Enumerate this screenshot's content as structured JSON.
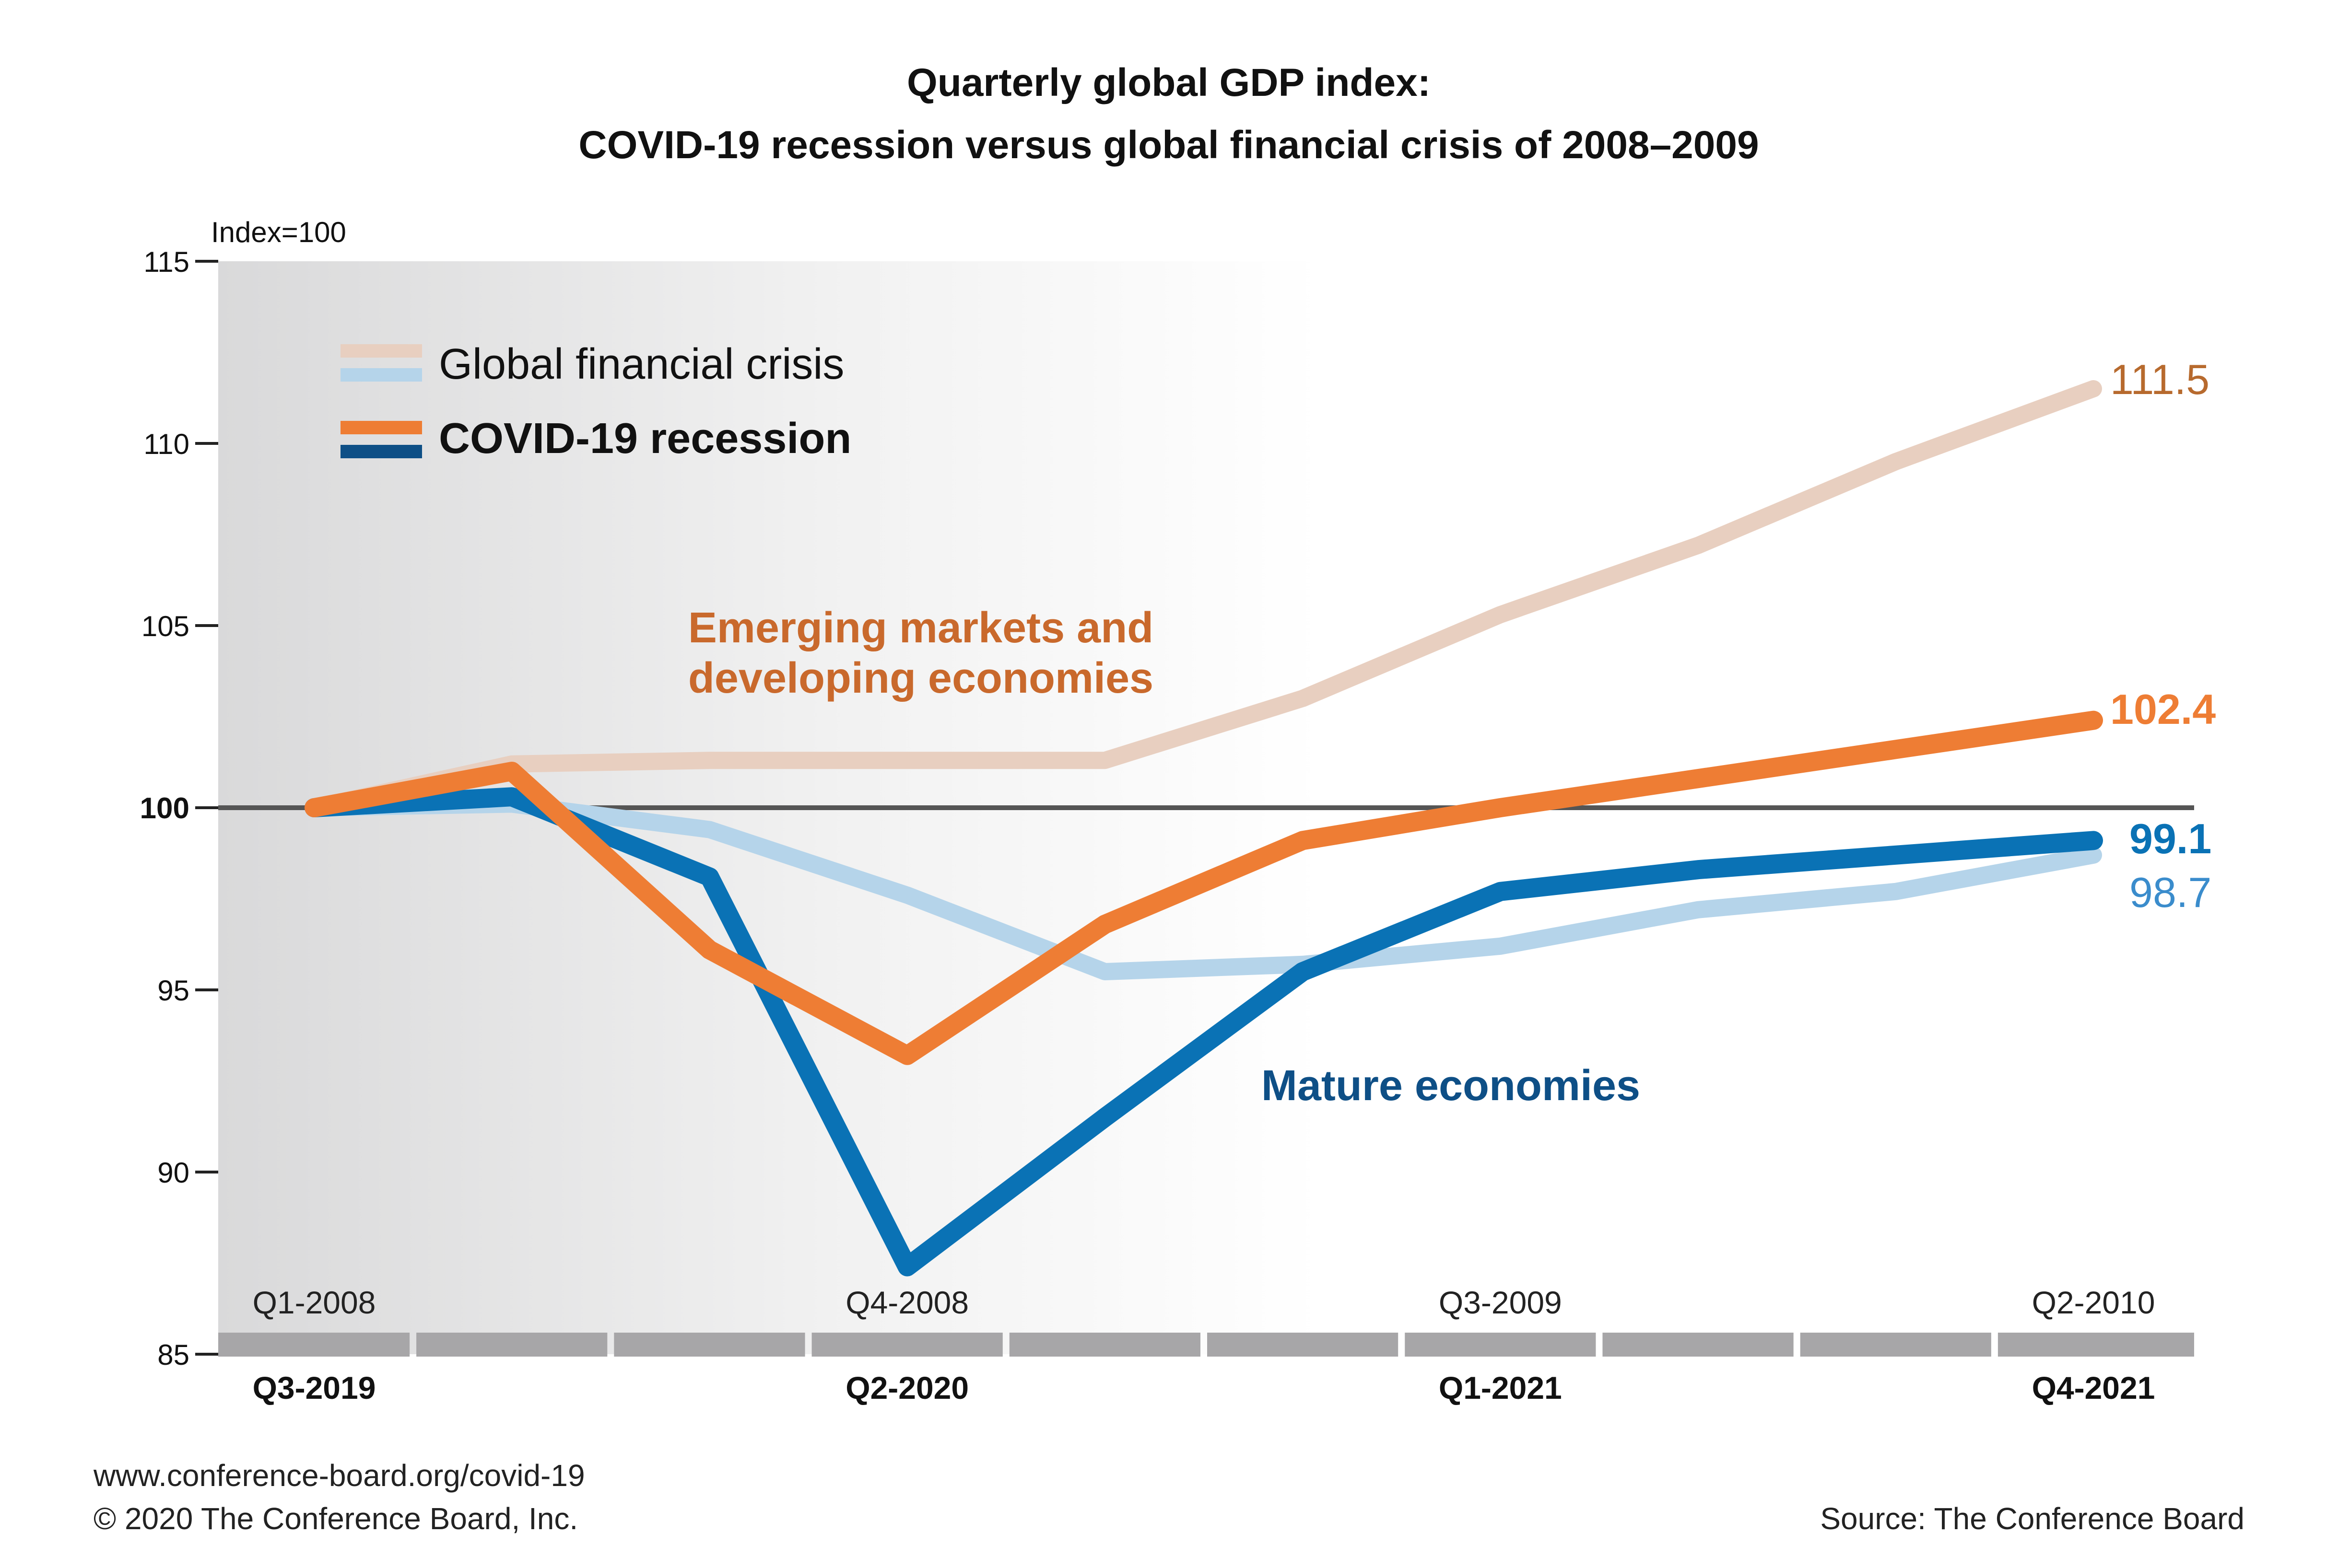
{
  "title_line1": "Quarterly global GDP index:",
  "title_line2": "COVID-19 recession versus global financial crisis of 2008–2009",
  "footer": {
    "url": "www.conference-board.org/covid-19",
    "copyright": "© 2020 The Conference Board, Inc.",
    "source": "Source: The Conference Board"
  },
  "legend": {
    "gfc_label": "Global financial crisis",
    "covid_label": "COVID-19 recession"
  },
  "annotations": {
    "emerging_line1": "Emerging markets and",
    "emerging_line2": "developing economies",
    "mature": "Mature economies"
  },
  "end_labels": [
    "111.5",
    "102.4",
    "99.1",
    "98.7"
  ],
  "colors": {
    "gfc_emerging": "#e8cfc0",
    "gfc_mature": "#b5d4ea",
    "covid_emerging": "#ee7d34",
    "covid_mature": "#0a72b5",
    "emerging_text": "#c9692c",
    "mature_text": "#0e4f86",
    "gfc_emerging_label": "#b76a2e",
    "gfc_mature_label": "#3a8ccc",
    "baseline": "#555555",
    "axis_bar": "#a7a6a8"
  },
  "chart_data": {
    "type": "line",
    "ylabel": "Index=100",
    "ylim": [
      85,
      115
    ],
    "yticks": [
      85,
      90,
      95,
      100,
      105,
      110,
      115
    ],
    "x_gfc_labels": [
      "Q1-2008",
      "Q4-2008",
      "Q3-2009",
      "Q2-2010"
    ],
    "x_covid_labels": [
      "Q3-2019",
      "Q2-2020",
      "Q1-2021",
      "Q4-2021"
    ],
    "n_quarters": 10,
    "series": [
      {
        "name": "Emerging markets and developing economies",
        "group": "Global financial crisis",
        "values": [
          100,
          101.2,
          101.3,
          101.3,
          101.3,
          103,
          105.3,
          107.2,
          109.5,
          111.5
        ]
      },
      {
        "name": "Mature economies",
        "group": "Global financial crisis",
        "values": [
          100,
          100.1,
          99.4,
          97.6,
          95.5,
          95.7,
          96.2,
          97.2,
          97.7,
          98.7
        ]
      },
      {
        "name": "Emerging markets and developing economies",
        "group": "COVID-19 recession",
        "values": [
          100,
          101,
          96.1,
          93.2,
          96.8,
          99.1,
          100,
          100.8,
          101.6,
          102.4
        ]
      },
      {
        "name": "Mature economies",
        "group": "COVID-19 recession",
        "values": [
          100,
          100.3,
          98.1,
          87.4,
          91.5,
          95.5,
          97.7,
          98.3,
          98.7,
          99.1
        ]
      }
    ]
  }
}
